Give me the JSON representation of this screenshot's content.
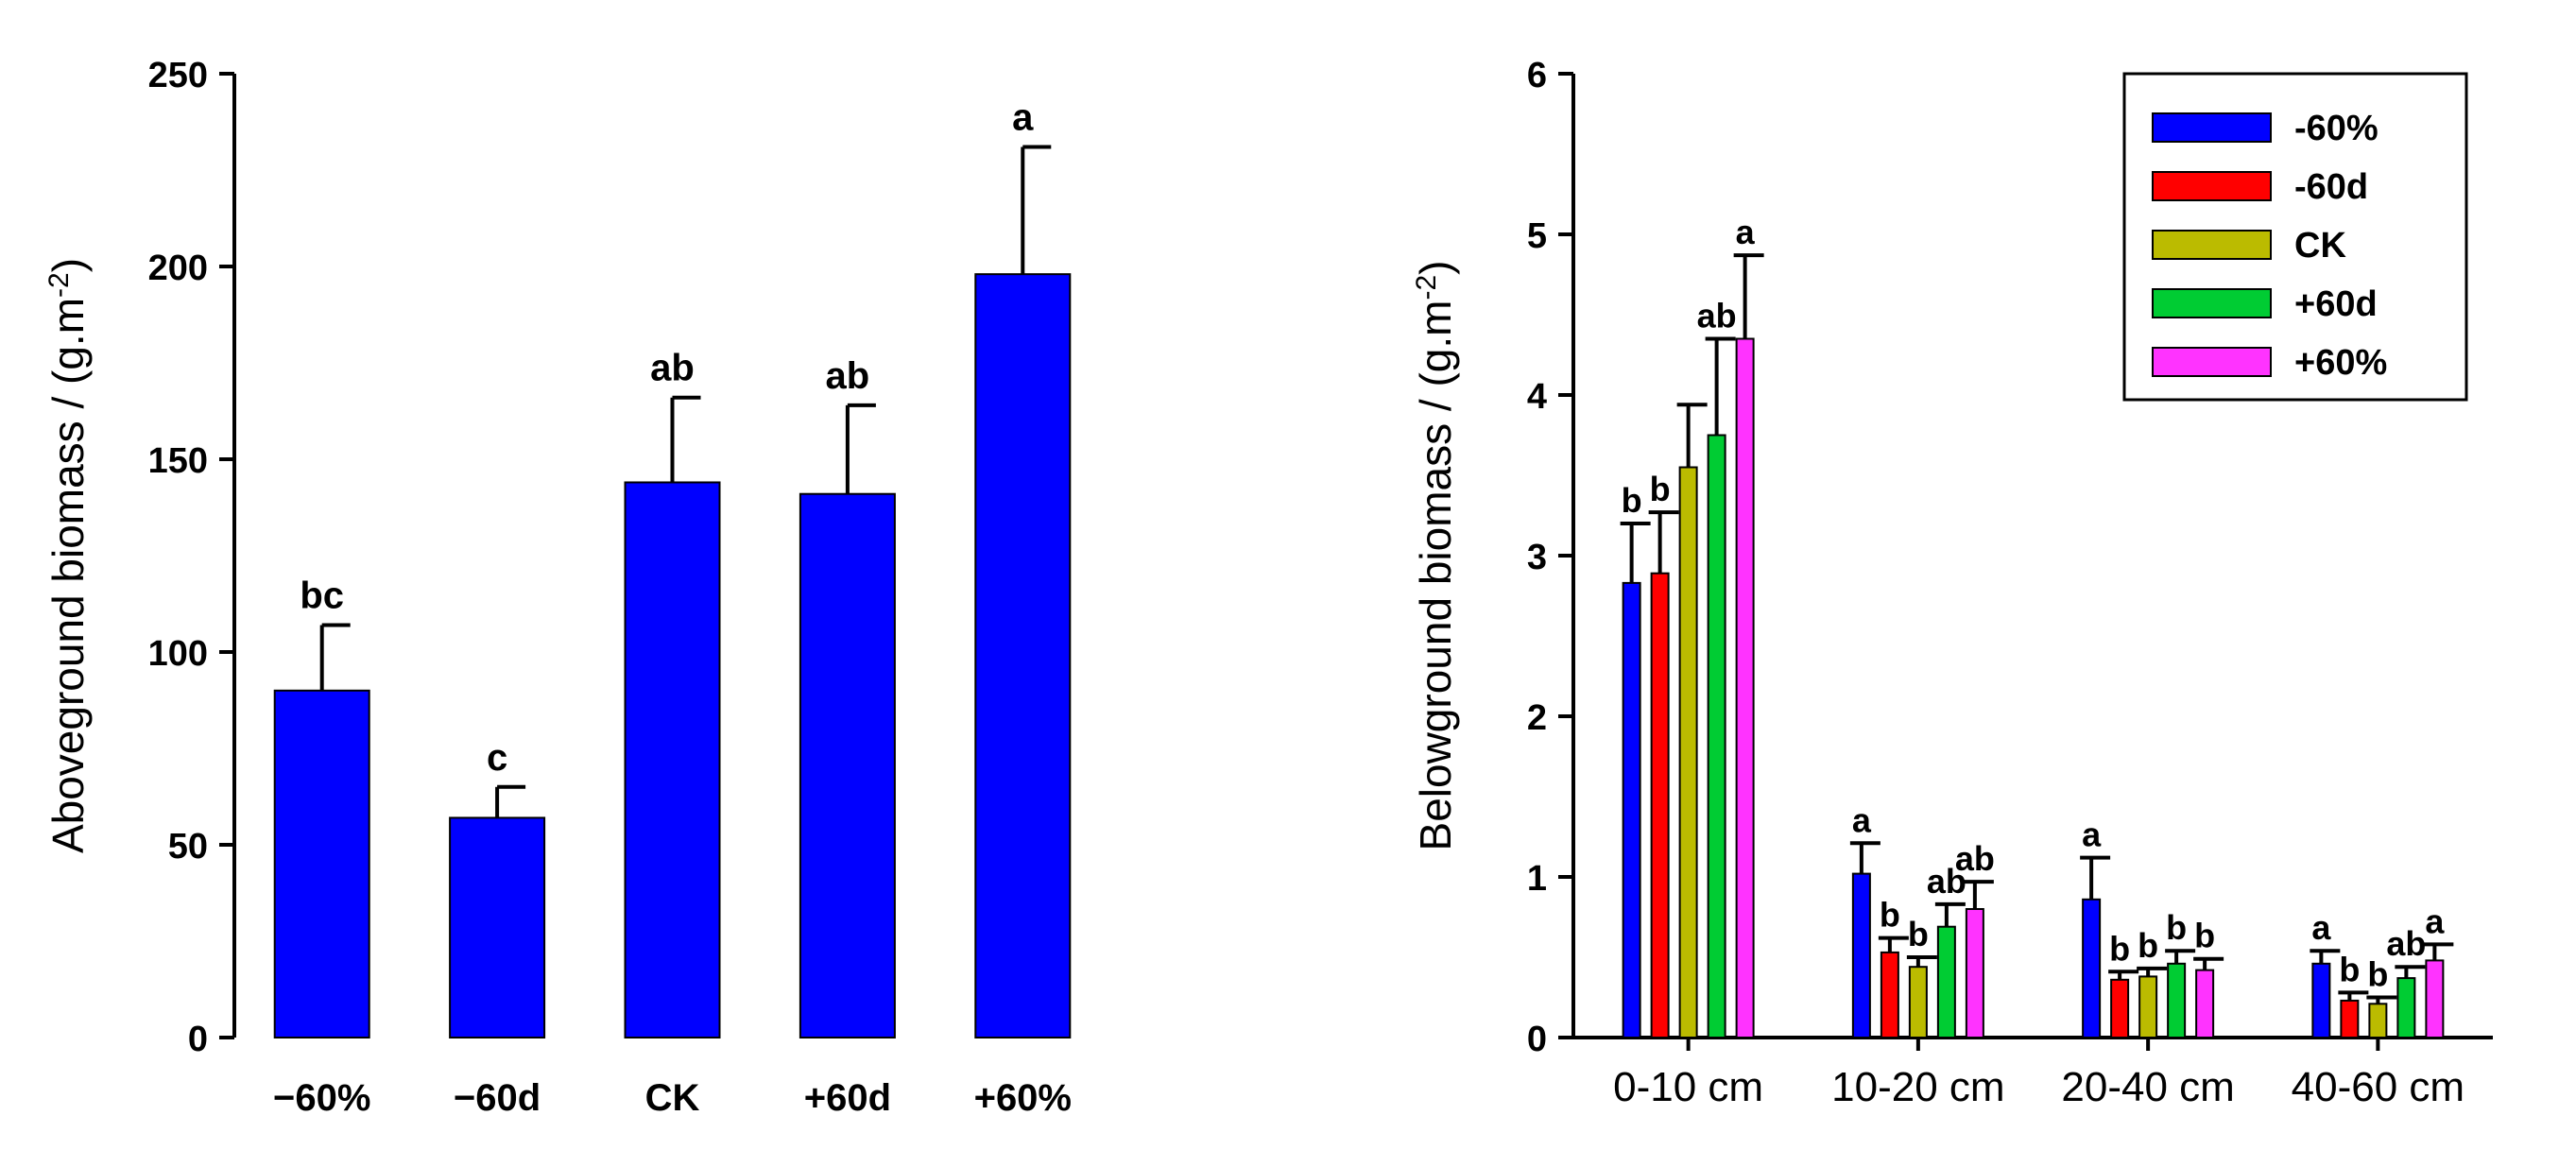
{
  "chart_data": [
    {
      "type": "bar",
      "title": "",
      "xlabel": "",
      "ylabel": "Aboveground biomass / (g.m",
      "ylabel_sup": "-2",
      "ylabel_tail": ")",
      "ylim": [
        0,
        250
      ],
      "yticks": [
        "0",
        "50",
        "100",
        "150",
        "200",
        "250"
      ],
      "categories": [
        "−60%",
        "−60d",
        "CK",
        "+60d",
        "+60%"
      ],
      "values": [
        90,
        57,
        144,
        141,
        198
      ],
      "errors": [
        17,
        8,
        22,
        23,
        33
      ],
      "significance": [
        "bc",
        "c",
        "ab",
        "ab",
        "a"
      ],
      "bar_color": "#0000ff"
    },
    {
      "type": "bar",
      "title": "",
      "xlabel": "",
      "ylabel": "Belowground biomass / (g.m",
      "ylabel_sup": "-2",
      "ylabel_tail": ")",
      "ylim": [
        0,
        6
      ],
      "yticks": [
        "0",
        "1",
        "2",
        "3",
        "4",
        "5",
        "6"
      ],
      "categories": [
        "0-10 cm",
        "10-20 cm",
        "20-40 cm",
        "40-60 cm"
      ],
      "legend_position": "top-right",
      "series": [
        {
          "name": "-60%",
          "color": "#0000ff",
          "values": [
            2.83,
            1.02,
            0.86,
            0.46
          ],
          "errors": [
            0.37,
            0.19,
            0.26,
            0.08
          ],
          "significance": [
            "b",
            "a",
            "a",
            "a"
          ]
        },
        {
          "name": "-60d",
          "color": "#ff0000",
          "values": [
            2.89,
            0.53,
            0.36,
            0.23
          ],
          "errors": [
            0.38,
            0.09,
            0.05,
            0.05
          ],
          "significance": [
            "b",
            "b",
            "b",
            "b"
          ]
        },
        {
          "name": "CK",
          "color": "#bbbb00",
          "values": [
            3.55,
            0.44,
            0.38,
            0.21
          ],
          "errors": [
            0.39,
            0.06,
            0.05,
            0.04
          ],
          "significance": [
            "",
            "b",
            "b",
            "b"
          ]
        },
        {
          "name": "+60d",
          "color": "#00cc33",
          "values": [
            3.75,
            0.69,
            0.46,
            0.37
          ],
          "errors": [
            0.6,
            0.14,
            0.08,
            0.07
          ],
          "significance": [
            "ab",
            "ab",
            "b",
            "ab"
          ]
        },
        {
          "name": "+60%",
          "color": "#ff33ff",
          "values": [
            4.35,
            0.8,
            0.42,
            0.48
          ],
          "errors": [
            0.52,
            0.17,
            0.07,
            0.1
          ],
          "significance": [
            "a",
            "ab",
            "b",
            "a"
          ]
        }
      ]
    }
  ]
}
